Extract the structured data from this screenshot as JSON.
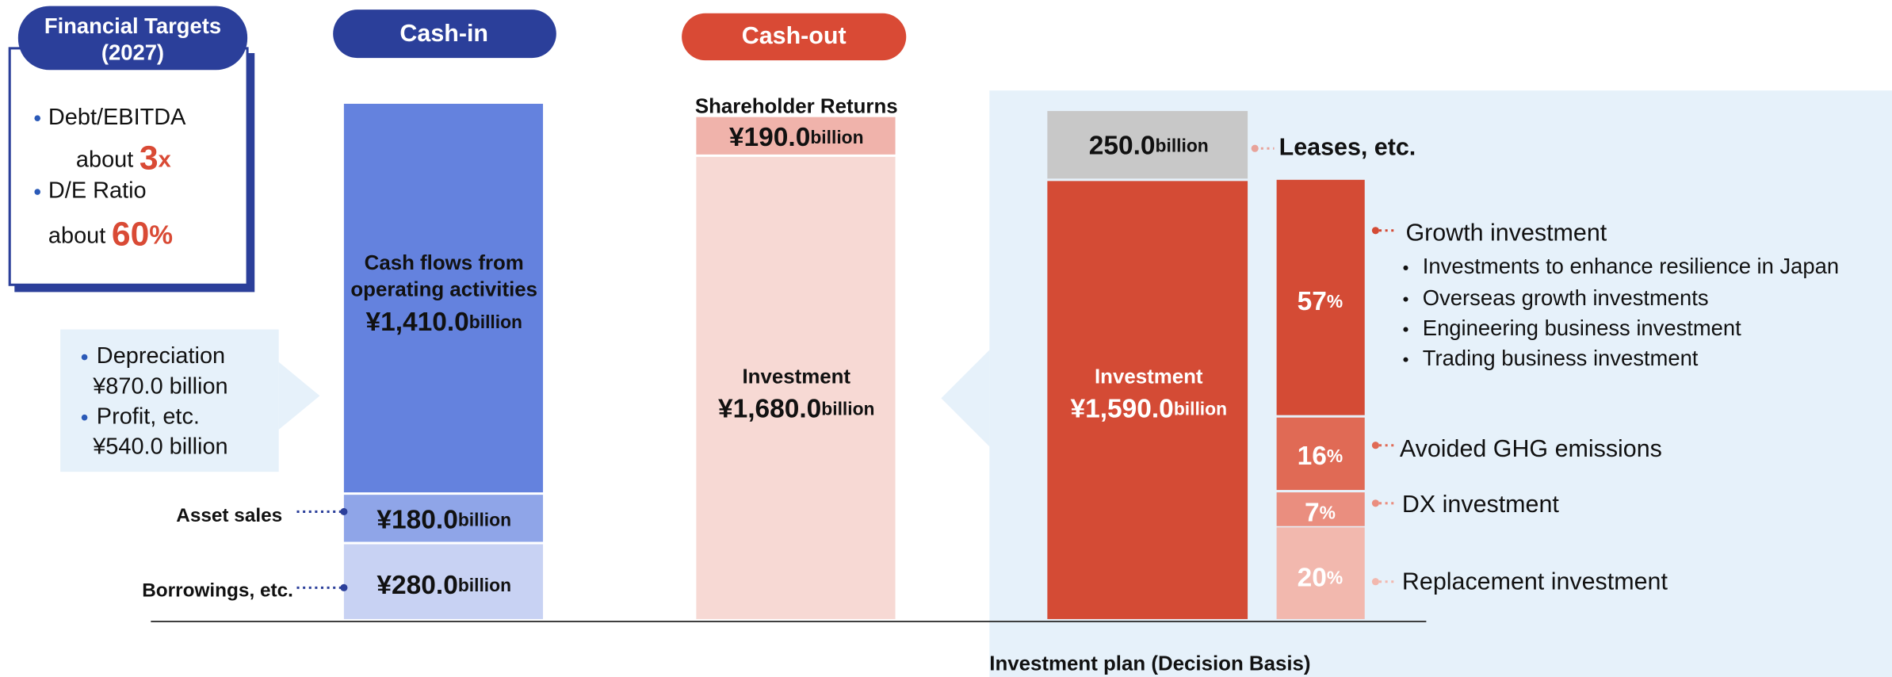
{
  "financial_targets": {
    "title": "Financial Targets",
    "subtitle": "(2027)",
    "items": [
      {
        "label": "Debt/EBITDA",
        "prefix": "about",
        "value": "3",
        "unit": "x"
      },
      {
        "label": "D/E Ratio",
        "prefix": "about",
        "value": "60",
        "unit": "%"
      }
    ]
  },
  "cash_in": {
    "title": "Cash-in",
    "operating": {
      "label": [
        "Cash flows from",
        "operating activities"
      ],
      "amount": "¥1,410.0",
      "unit": "billion",
      "breakdown": [
        "Depreciation",
        "¥870.0 billion",
        "Profit, etc.",
        "¥540.0 billion"
      ]
    },
    "asset_sales": {
      "label": "Asset sales",
      "amount": "¥180.0",
      "unit": "billion"
    },
    "borrowings": {
      "label": "Borrowings, etc.",
      "amount": "¥280.0",
      "unit": "billion"
    }
  },
  "cash_out": {
    "title": "Cash-out",
    "shareholder_returns": {
      "label": "Shareholder Returns",
      "amount": "¥190.0",
      "unit": "billion"
    },
    "investment": {
      "label": "Investment",
      "amount": "¥1,680.0",
      "unit": "billion"
    }
  },
  "investment_plan": {
    "title": "Investment plan (Decision Basis)",
    "leases": {
      "label": "Leases, etc.",
      "amount": "250.0",
      "unit": "billion"
    },
    "investment": {
      "label": "Investment",
      "amount": "¥1,590.0",
      "unit": "billion"
    },
    "breakdown": [
      {
        "label": "Growth investment",
        "value": 57,
        "unit": "%",
        "items": [
          "Investments to enhance resilience in Japan",
          "Overseas growth investments",
          "Engineering business investment",
          "Trading business investment"
        ]
      },
      {
        "label": "Avoided GHG emissions",
        "value": 16,
        "unit": "%"
      },
      {
        "label": "DX investment",
        "value": 7,
        "unit": "%"
      },
      {
        "label": "Replacement investment",
        "value": 20,
        "unit": "%"
      }
    ]
  }
}
